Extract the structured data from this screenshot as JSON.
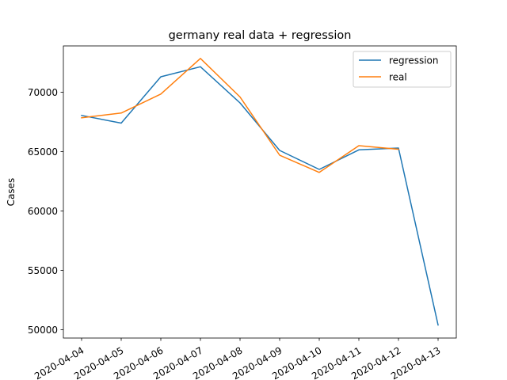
{
  "chart_data": {
    "type": "line",
    "title": "germany real data + regression",
    "xlabel": "",
    "ylabel": "Cases",
    "x": [
      "2020-04-04",
      "2020-04-05",
      "2020-04-06",
      "2020-04-07",
      "2020-04-08",
      "2020-04-09",
      "2020-04-10",
      "2020-04-11",
      "2020-04-12",
      "2020-04-13"
    ],
    "ylim": [
      49300,
      73900
    ],
    "yticks": [
      50000,
      55000,
      60000,
      65000,
      70000
    ],
    "grid": false,
    "legend_position": "top-right",
    "series": [
      {
        "name": "regression",
        "color": "#1f77b4",
        "values": [
          68050,
          67400,
          71300,
          72150,
          69100,
          65100,
          63500,
          65150,
          65300,
          50400
        ]
      },
      {
        "name": "real",
        "color": "#ff7f0e",
        "values": [
          67850,
          68250,
          69850,
          72850,
          69600,
          64700,
          63250,
          65500,
          65200,
          null
        ]
      }
    ]
  }
}
